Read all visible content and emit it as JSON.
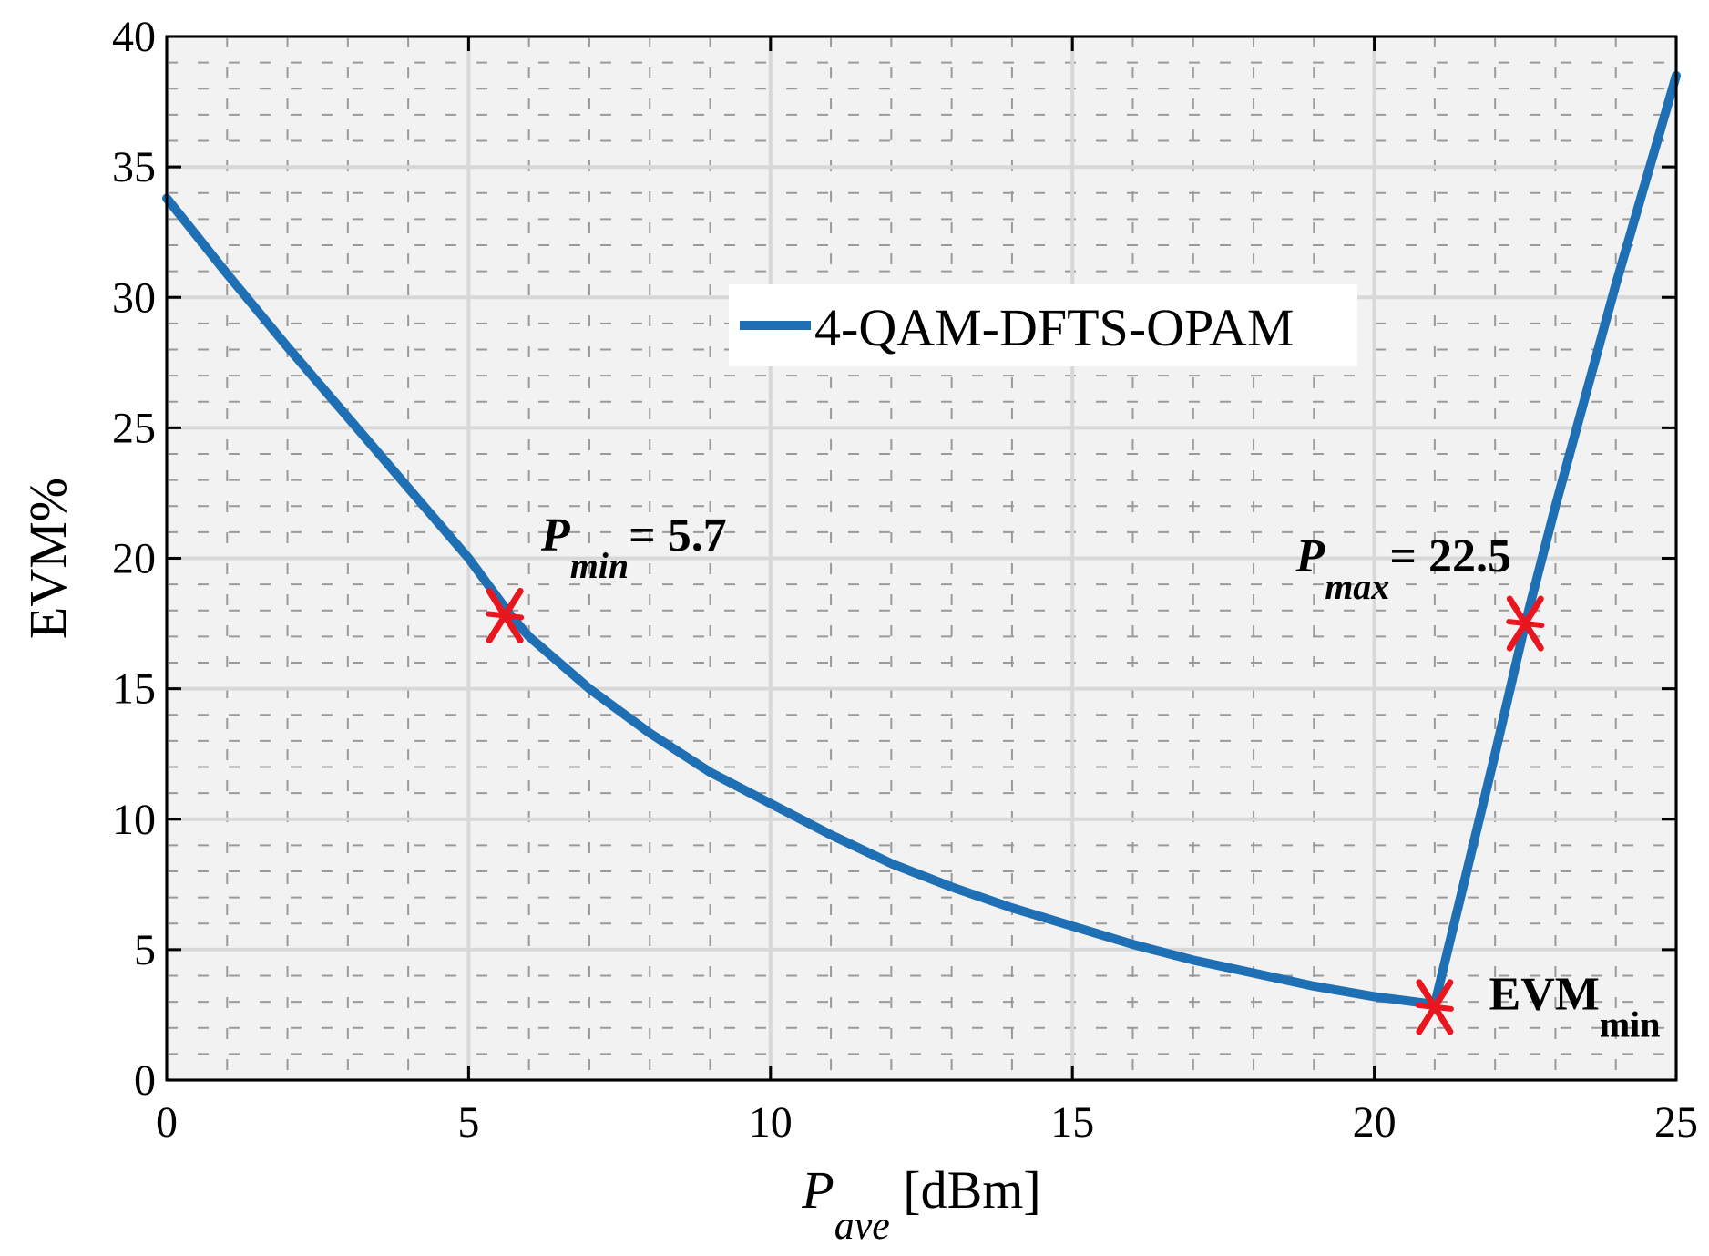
{
  "chart_data": {
    "type": "line",
    "title": "",
    "xlabel": {
      "main": "P",
      "sub": "ave",
      "unit": " [dBm]"
    },
    "ylabel": "EVM%",
    "xlim": [
      0,
      25
    ],
    "ylim": [
      0,
      40
    ],
    "xticks": [
      0,
      5,
      10,
      15,
      20,
      25
    ],
    "yticks": [
      0,
      5,
      10,
      15,
      20,
      25,
      30,
      35,
      40
    ],
    "grid": true,
    "legend": {
      "placement": "top-center"
    },
    "series": [
      {
        "name": "4-QAM-DFTS-OPAM",
        "color": "#1f6fb4",
        "x": [
          0,
          1,
          2,
          3,
          4,
          5,
          5.7,
          6,
          7,
          8,
          9,
          10,
          11,
          12,
          13,
          14,
          15,
          16,
          17,
          18,
          19,
          20,
          21,
          22,
          22.5,
          23,
          24,
          25
        ],
        "y": [
          33.8,
          30.9,
          28.1,
          25.4,
          22.7,
          20.0,
          17.8,
          17.0,
          15.0,
          13.3,
          11.8,
          10.6,
          9.4,
          8.3,
          7.4,
          6.6,
          5.9,
          5.2,
          4.6,
          4.1,
          3.6,
          3.2,
          2.9,
          12.5,
          17.5,
          22.0,
          30.5,
          38.5
        ]
      }
    ],
    "markers": [
      {
        "x": 5.6,
        "y": 17.8,
        "color": "#e8171f"
      },
      {
        "x": 21.0,
        "y": 2.8,
        "color": "#e8171f"
      },
      {
        "x": 22.5,
        "y": 17.5,
        "color": "#e8171f"
      }
    ],
    "annotations": [
      {
        "main": "P",
        "sub": "min",
        "rest": "= 5.7",
        "x": 6.2,
        "y": 20.3,
        "style": "bold-italic"
      },
      {
        "main": "P",
        "sub": "max",
        "rest": "= 22.5",
        "x": 18.7,
        "y": 19.5,
        "style": "bold-italic"
      },
      {
        "main": "EVM",
        "sub": "min",
        "rest": "",
        "x": 21.9,
        "y": 2.7,
        "style": "normal"
      }
    ]
  }
}
